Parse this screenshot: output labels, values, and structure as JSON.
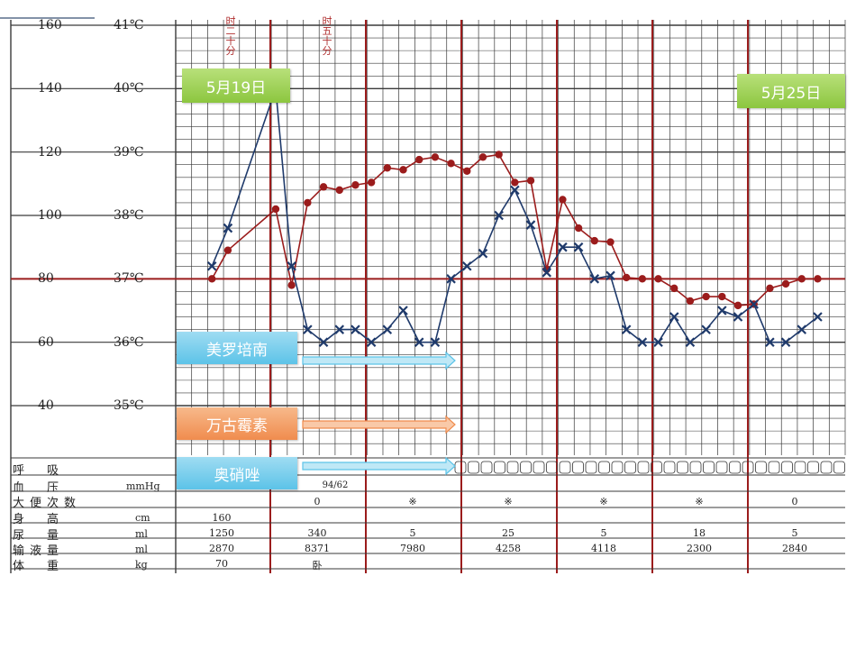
{
  "chart_data": {
    "type": "line",
    "left_axis": {
      "pulse_ticks": [
        "160",
        "140",
        "120",
        "100",
        "80",
        "60",
        "40"
      ],
      "temp_ticks": [
        "41℃",
        "40℃",
        "39℃",
        "38℃",
        "37℃",
        "36℃",
        "35℃"
      ]
    },
    "date_labels": [
      "5月19日",
      "5月25日"
    ],
    "annotation_top": [
      "时二十分",
      "时五十分"
    ],
    "series": [
      {
        "color": "#9b1c1c",
        "marker": "dot",
        "points": [
          [
            0,
            37.0
          ],
          [
            1,
            37.45
          ],
          [
            4,
            38.1
          ],
          [
            5,
            36.9
          ],
          [
            6,
            38.2
          ],
          [
            7,
            38.45
          ],
          [
            8,
            38.4
          ],
          [
            9,
            38.48
          ],
          [
            10,
            38.52
          ],
          [
            11,
            38.75
          ],
          [
            12,
            38.72
          ],
          [
            13,
            38.88
          ],
          [
            14,
            38.92
          ],
          [
            15,
            38.82
          ],
          [
            16,
            38.7
          ],
          [
            17,
            38.92
          ],
          [
            18,
            38.96
          ],
          [
            19,
            38.52
          ],
          [
            20,
            38.55
          ],
          [
            21,
            37.15
          ],
          [
            22,
            38.25
          ],
          [
            23,
            37.8
          ],
          [
            24,
            37.6
          ],
          [
            25,
            37.58
          ],
          [
            26,
            37.02
          ],
          [
            27,
            37.0
          ],
          [
            28,
            37.0
          ],
          [
            29,
            36.85
          ],
          [
            30,
            36.65
          ],
          [
            31,
            36.72
          ],
          [
            32,
            36.72
          ],
          [
            33,
            36.58
          ],
          [
            34,
            36.6
          ],
          [
            35,
            36.85
          ],
          [
            36,
            36.92
          ],
          [
            37,
            37.0
          ],
          [
            38,
            37.0
          ]
        ]
      },
      {
        "color": "#1f3a6b",
        "marker": "x",
        "points": [
          [
            0,
            37.2
          ],
          [
            1,
            37.8
          ],
          [
            4,
            40.0
          ],
          [
            5,
            37.2
          ],
          [
            6,
            36.2
          ],
          [
            7,
            36.0
          ],
          [
            8,
            36.2
          ],
          [
            9,
            36.2
          ],
          [
            10,
            36.0
          ],
          [
            11,
            36.2
          ],
          [
            12,
            36.5
          ],
          [
            13,
            36.0
          ],
          [
            14,
            36.0
          ],
          [
            15,
            37.0
          ],
          [
            16,
            37.2
          ],
          [
            17,
            37.4
          ],
          [
            18,
            38.0
          ],
          [
            19,
            38.4
          ],
          [
            20,
            37.85
          ],
          [
            21,
            37.1
          ],
          [
            22,
            37.5
          ],
          [
            23,
            37.5
          ],
          [
            24,
            37.0
          ],
          [
            25,
            37.05
          ],
          [
            26,
            36.2
          ],
          [
            27,
            36.0
          ],
          [
            28,
            36.0
          ],
          [
            29,
            36.4
          ],
          [
            30,
            36.0
          ],
          [
            31,
            36.2
          ],
          [
            32,
            36.5
          ],
          [
            33,
            36.4
          ],
          [
            34,
            36.6
          ],
          [
            35,
            36.0
          ],
          [
            36,
            36.0
          ],
          [
            37,
            36.2
          ],
          [
            38,
            36.4
          ]
        ]
      }
    ],
    "reference_line": 37.0
  },
  "drugs": [
    {
      "name": "美罗培南",
      "color": "blue"
    },
    {
      "name": "万古霉素",
      "color": "orange"
    },
    {
      "name": "奥硝唑",
      "color": "blue"
    }
  ],
  "rows": [
    {
      "label": "呼　吸",
      "unit": "",
      "values": []
    },
    {
      "label": "血　压",
      "unit": "mmHg",
      "values": [
        "94/62"
      ]
    },
    {
      "label": "大便次数",
      "unit": "",
      "values": [
        "0",
        "※",
        "※",
        "※",
        "※",
        "0"
      ]
    },
    {
      "label": "身　高",
      "unit": "cm",
      "values": [
        "160"
      ]
    },
    {
      "label": "尿　量",
      "unit": "ml",
      "values": [
        "1250",
        "340",
        "5",
        "25",
        "5",
        "18",
        "5"
      ]
    },
    {
      "label": "输液量",
      "unit": "ml",
      "values": [
        "2870",
        "8371",
        "7980",
        "4258",
        "4118",
        "2300",
        "2840"
      ]
    },
    {
      "label": "体　重",
      "unit": "kg",
      "values": [
        "70",
        "卧"
      ]
    }
  ],
  "colors": {
    "grid": "#3a3a3a",
    "day_line": "#9b1c1c",
    "temp_series": "#9b1c1c",
    "pulse_series": "#1f3a6b"
  }
}
